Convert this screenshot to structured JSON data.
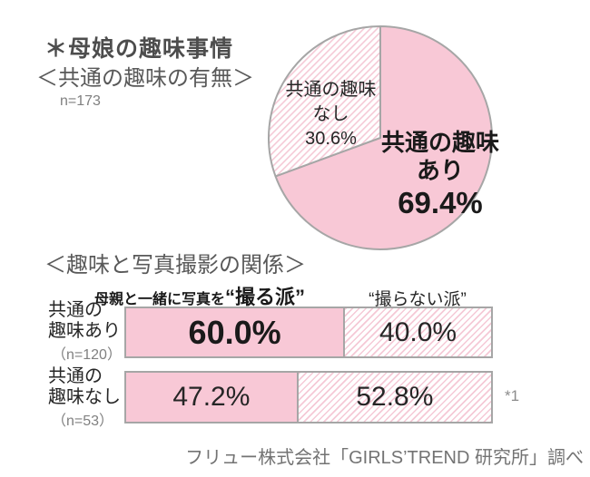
{
  "header": {
    "title": "＊母娘の趣味事情",
    "subtitle": "＜共通の趣味の有無＞",
    "sample_size": "n=173"
  },
  "pie": {
    "label_no": {
      "line1": "共通の趣味",
      "line2": "なし",
      "value": "30.6%"
    },
    "label_yes": {
      "line1": "共通の趣味",
      "line2": "あり",
      "value": "69.4%"
    }
  },
  "bars": {
    "heading": "＜趣味と写真撮影の関係＞",
    "legend_prefix": "母親と一緒に写真を",
    "legend_take": "“撮る派”",
    "legend_not_take": "“撮らない派”",
    "rows": [
      {
        "label_line1": "共通の",
        "label_line2": "趣味あり",
        "n_label": "（n=120）",
        "take_value": "60.0%",
        "not_take_value": "40.0%"
      },
      {
        "label_line1": "共通の",
        "label_line2": "趣味なし",
        "n_label": "（n=53）",
        "take_value": "47.2%",
        "not_take_value": "52.8%"
      }
    ],
    "footnote": "*1"
  },
  "footer": {
    "source": "フリュー株式会社「GIRLS’TREND 研究所」調べ"
  },
  "colors": {
    "solid_pink": "#f8c8d6",
    "hatch_pink": "#f5c9d6",
    "border_gray": "#a6a6a6",
    "heading_gray": "#595959",
    "text_dark": "#262626",
    "muted_gray": "#808080"
  },
  "chart_data": [
    {
      "type": "pie",
      "title": "＜共通の趣味の有無＞",
      "n": 173,
      "labels": [
        "共通の趣味あり",
        "共通の趣味なし"
      ],
      "values": [
        69.4,
        30.6
      ],
      "unit": "%",
      "start_angle_deg": 0,
      "direction": "clockwise",
      "styles": [
        "solid-pink",
        "pink-hatched"
      ]
    },
    {
      "type": "bar",
      "title": "＜趣味と写真撮影の関係＞",
      "orientation": "horizontal-stacked",
      "categories": [
        "共通の趣味あり（n=120）",
        "共通の趣味なし（n=53）"
      ],
      "series": [
        {
          "name": "母親と一緒に写真を“撮る派”",
          "values": [
            60.0,
            47.2
          ],
          "style": "solid-pink"
        },
        {
          "name": "“撮らない派”",
          "values": [
            40.0,
            52.8
          ],
          "style": "pink-hatched"
        }
      ],
      "unit": "%",
      "xlim": [
        0,
        100
      ],
      "footnote": "*1"
    }
  ]
}
